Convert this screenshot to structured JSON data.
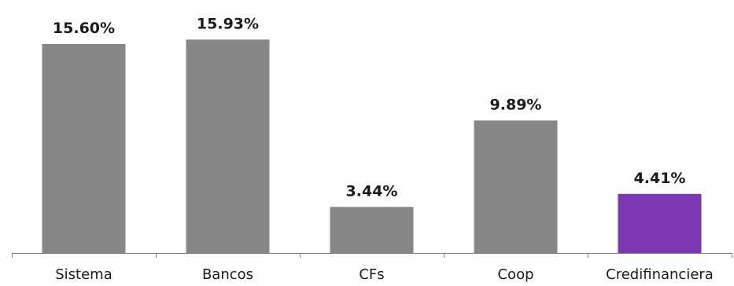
{
  "chart_data": {
    "type": "bar",
    "categories": [
      "Sistema",
      "Bancos",
      "CFs",
      "Coop",
      "Credifinanciera"
    ],
    "values": [
      15.6,
      15.93,
      3.44,
      9.89,
      4.41
    ],
    "value_labels": [
      "15.60%",
      "15.93%",
      "3.44%",
      "9.89%",
      "4.41%"
    ],
    "ylim": [
      0,
      17.3
    ],
    "grid": false,
    "legend": "none",
    "colors": [
      "#878787",
      "#878787",
      "#878787",
      "#878787",
      "#7b36b1"
    ]
  }
}
